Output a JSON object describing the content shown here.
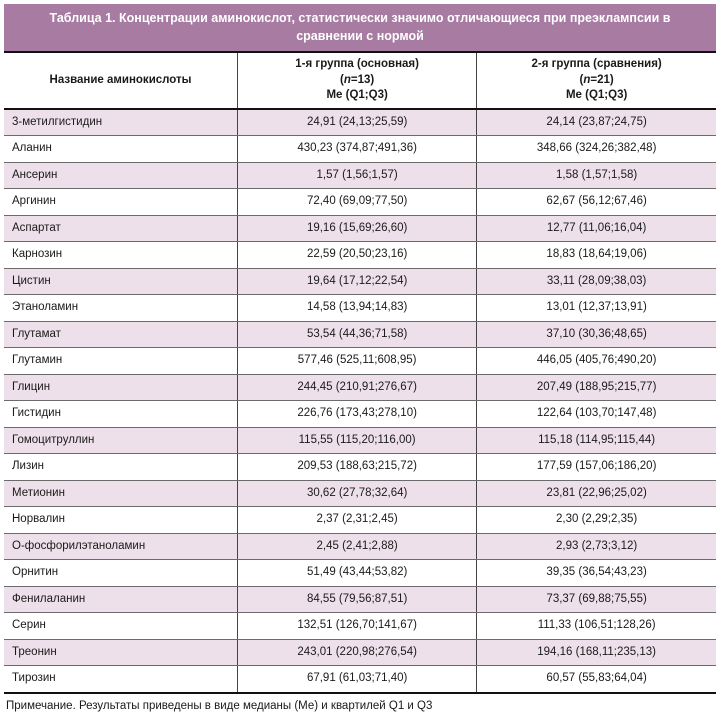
{
  "title": "Таблица 1. Концентрации аминокислот, статистически значимо отличающиеся при преэклампсии в сравнении с нормой",
  "colors": {
    "banner": "#a77ba2",
    "row_alt": "#eee0ea",
    "border_dark": "#111111",
    "border_light": "#6b6b6b"
  },
  "header": {
    "name_column": "Название аминокислоты",
    "group1": {
      "line1": "1-я группа (основная)",
      "line2_parts": [
        "(",
        "n",
        "=13)"
      ],
      "line3": "Ме (Q1;Q3)"
    },
    "group2": {
      "line1": "2-я группа (сравнения)",
      "line2_parts": [
        "(",
        "n",
        "=21)"
      ],
      "line3": "Ме (Q1;Q3)"
    }
  },
  "rows": [
    {
      "name": "3-метилгистидин",
      "g1": "24,91 (24,13;25,59)",
      "g2": "24,14 (23,87;24,75)"
    },
    {
      "name": "Аланин",
      "g1": "430,23 (374,87;491,36)",
      "g2": "348,66 (324,26;382,48)"
    },
    {
      "name": "Ансерин",
      "g1": "1,57 (1,56;1,57)",
      "g2": "1,58 (1,57;1,58)"
    },
    {
      "name": "Аргинин",
      "g1": "72,40 (69,09;77,50)",
      "g2": "62,67 (56,12;67,46)"
    },
    {
      "name": "Аспартат",
      "g1": "19,16 (15,69;26,60)",
      "g2": "12,77 (11,06;16,04)"
    },
    {
      "name": "Карнозин",
      "g1": "22,59 (20,50;23,16)",
      "g2": "18,83 (18,64;19,06)"
    },
    {
      "name": "Цистин",
      "g1": "19,64 (17,12;22,54)",
      "g2": "33,11 (28,09;38,03)"
    },
    {
      "name": "Этаноламин",
      "g1": "14,58 (13,94;14,83)",
      "g2": "13,01 (12,37;13,91)"
    },
    {
      "name": "Глутамат",
      "g1": "53,54 (44,36;71,58)",
      "g2": "37,10 (30,36;48,65)"
    },
    {
      "name": "Глутамин",
      "g1": "577,46 (525,11;608,95)",
      "g2": "446,05 (405,76;490,20)"
    },
    {
      "name": "Глицин",
      "g1": "244,45 (210,91;276,67)",
      "g2": "207,49 (188,95;215,77)"
    },
    {
      "name": "Гистидин",
      "g1": "226,76 (173,43;278,10)",
      "g2": "122,64 (103,70;147,48)"
    },
    {
      "name": "Гомоцитруллин",
      "g1": "115,55 (115,20;116,00)",
      "g2": "115,18 (114,95;115,44)"
    },
    {
      "name": "Лизин",
      "g1": "209,53 (188,63;215,72)",
      "g2": "177,59 (157,06;186,20)"
    },
    {
      "name": "Метионин",
      "g1": "30,62 (27,78;32,64)",
      "g2": "23,81 (22,96;25,02)"
    },
    {
      "name": "Норвалин",
      "g1": "2,37 (2,31;2,45)",
      "g2": "2,30 (2,29;2,35)"
    },
    {
      "name": "О-фосфорилэтаноламин",
      "g1": "2,45 (2,41;2,88)",
      "g2": "2,93 (2,73;3,12)"
    },
    {
      "name": "Орнитин",
      "g1": "51,49 (43,44;53,82)",
      "g2": "39,35 (36,54;43,23)"
    },
    {
      "name": "Фенилаланин",
      "g1": "84,55 (79,56;87,51)",
      "g2": "73,37 (69,88;75,55)"
    },
    {
      "name": "Серин",
      "g1": "132,51 (126,70;141,67)",
      "g2": "111,33 (106,51;128,26)"
    },
    {
      "name": "Треонин",
      "g1": "243,01 (220,98;276,54)",
      "g2": "194,16 (168,11;235,13)"
    },
    {
      "name": "Тирозин",
      "g1": "67,91 (61,03;71,40)",
      "g2": "60,57 (55,83;64,04)"
    }
  ],
  "note": "Примечание. Результаты приведены в виде медианы (Ме) и квартилей Q1 и Q3"
}
